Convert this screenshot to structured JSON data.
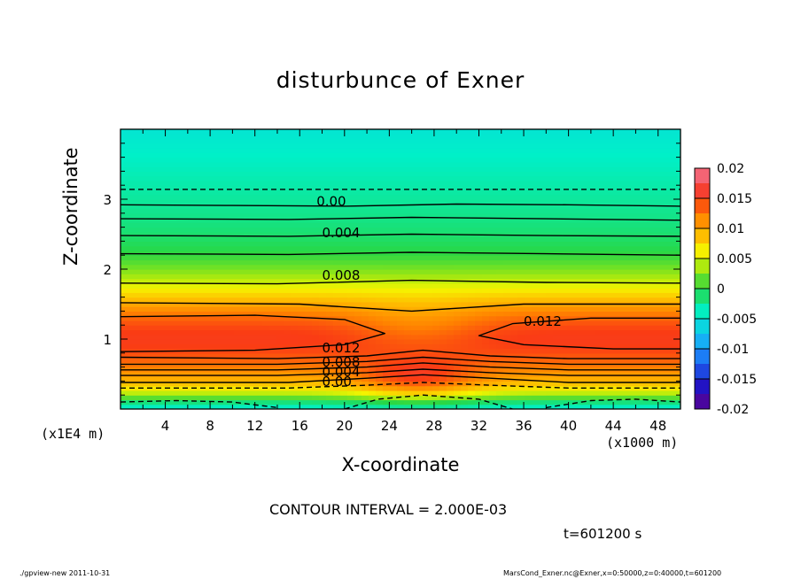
{
  "chart_data": {
    "type": "heatmap",
    "title": "disturbunce of Exner",
    "xlabel": "X-coordinate",
    "ylabel": "Z-coordinate",
    "x_unit": "(x1000 m)",
    "y_unit": "(x1E4 m)",
    "xlim": [
      0,
      50
    ],
    "ylim": [
      0,
      4
    ],
    "x_ticks": [
      "4",
      "8",
      "12",
      "16",
      "20",
      "24",
      "28",
      "32",
      "36",
      "40",
      "44",
      "48"
    ],
    "y_ticks": [
      "1",
      "2",
      "3"
    ],
    "colorbar_ticks": [
      "0.02",
      "0.015",
      "0.01",
      "0.005",
      "0",
      "-0.005",
      "-0.01",
      "-0.015",
      "-0.02"
    ],
    "colorbar_range": [
      -0.02,
      0.02
    ],
    "contour_interval": "CONTOUR INTERVAL = 2.000E-03",
    "contour_labels": [
      "0.00",
      "0.004",
      "0.008",
      "0.012",
      "0.012",
      "0.008",
      "0.004",
      "0.00"
    ],
    "time": "t=601200 s"
  },
  "footer": {
    "left": "./gpview-new   2011-10-31",
    "right": "MarsCond_Exner.nc@Exner,x=0:50000,z=0:40000,t=601200"
  },
  "colors": {
    "background": "#ffffff",
    "axis": "#000000"
  }
}
